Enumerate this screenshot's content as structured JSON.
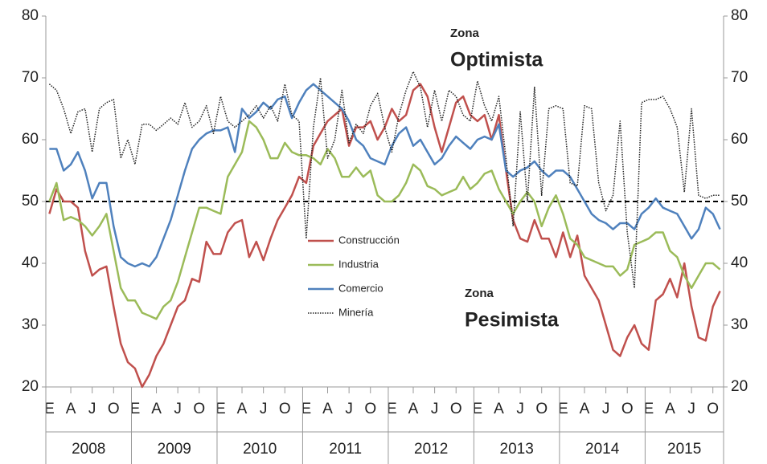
{
  "chart_data": {
    "type": "line",
    "categories": [
      "E",
      null,
      null,
      "A",
      null,
      null,
      "J",
      null,
      null,
      "O",
      null,
      null,
      "E",
      null,
      null,
      "A",
      null,
      null,
      "J",
      null,
      null,
      "O",
      null,
      null,
      "E",
      null,
      null,
      "A",
      null,
      null,
      "J",
      null,
      null,
      "O",
      null,
      null,
      "E",
      null,
      null,
      "A",
      null,
      null,
      "J",
      null,
      null,
      "O",
      null,
      null,
      "E",
      null,
      null,
      "A",
      null,
      null,
      "J",
      null,
      null,
      "O",
      null,
      null,
      "E",
      null,
      null,
      "A",
      null,
      null,
      "J",
      null,
      null,
      "O",
      null,
      null,
      "E",
      null,
      null,
      "A",
      null,
      null,
      "J",
      null,
      null,
      "O",
      null,
      null,
      "E",
      null,
      null,
      "A",
      null,
      null,
      "J",
      null,
      null,
      "O",
      null
    ],
    "years": [
      "2008",
      "2009",
      "2010",
      "2011",
      "2012",
      "2013",
      "2014",
      "2015"
    ],
    "series": [
      {
        "name": "Construcción",
        "color": "#c0504d",
        "style": "solid",
        "values": [
          48,
          52,
          50,
          50,
          49,
          42,
          38,
          39,
          39.5,
          33,
          27,
          24,
          23,
          20,
          22,
          25,
          27,
          30,
          33,
          34,
          37.5,
          37,
          43.5,
          41.5,
          41.5,
          45,
          46.5,
          47,
          41,
          43.5,
          40.5,
          44,
          47,
          49,
          51,
          54,
          53,
          59,
          61,
          63,
          64,
          65,
          59,
          62,
          62,
          63,
          60,
          62,
          65,
          63,
          64,
          68,
          69,
          67,
          62,
          58,
          62,
          66,
          67,
          64,
          63,
          64,
          60,
          64,
          55,
          47,
          44,
          43.5,
          47,
          44,
          44,
          41,
          45,
          41,
          44.5,
          38,
          36,
          34,
          30,
          26,
          25,
          28,
          30,
          27,
          26,
          34,
          35,
          37.5,
          34.5,
          40,
          33,
          28,
          27.5,
          33,
          35.5
        ]
      },
      {
        "name": "Industria",
        "color": "#9bbb59",
        "style": "solid",
        "values": [
          50,
          53,
          47,
          47.5,
          47,
          46,
          44.5,
          46,
          48,
          42,
          36,
          34,
          34,
          32,
          31.5,
          31,
          33,
          34,
          37,
          41,
          45,
          49,
          49,
          48.5,
          48,
          54,
          56,
          58,
          63,
          62,
          60,
          57,
          57,
          59.5,
          58,
          57.5,
          57.5,
          57,
          56,
          58.5,
          57,
          54,
          54,
          55.5,
          54,
          55,
          51,
          50,
          50,
          51,
          53,
          56,
          55,
          52.5,
          52,
          51,
          51.5,
          52,
          54,
          52,
          53,
          54.5,
          55,
          52,
          50,
          48,
          50,
          51.5,
          50,
          46,
          49,
          51,
          48,
          44,
          43,
          41,
          40.5,
          40,
          39.5,
          39.5,
          38,
          39,
          43,
          43.5,
          44,
          45,
          45,
          42,
          41,
          38,
          36,
          38,
          40,
          40,
          39
        ]
      },
      {
        "name": "Comercio",
        "color": "#4f81bd",
        "style": "solid",
        "values": [
          58.5,
          58.5,
          55,
          56,
          58,
          55,
          50.5,
          53,
          53,
          46,
          41,
          40,
          39.5,
          40,
          39.5,
          41,
          44,
          47,
          51,
          55,
          58.5,
          60,
          61,
          61.5,
          61.5,
          62,
          58,
          65,
          63.5,
          64.5,
          66,
          65,
          66.5,
          67,
          63.5,
          66,
          68,
          69,
          68,
          67,
          66,
          65,
          63,
          60,
          59,
          57,
          56.5,
          56,
          59,
          61,
          62,
          59,
          60,
          58,
          56,
          57,
          59,
          60.5,
          59.5,
          58.5,
          60,
          60.5,
          60,
          62.5,
          55,
          54,
          55,
          55.5,
          56.5,
          55,
          54,
          55,
          55,
          54,
          52,
          50,
          48,
          47,
          46.5,
          45.5,
          46.5,
          46.5,
          45.5,
          48,
          49,
          50.5,
          49,
          48.5,
          48,
          46,
          44,
          45.5,
          49,
          48,
          45.5
        ]
      },
      {
        "name": "Minería",
        "color": "#222222",
        "style": "dotted",
        "values": [
          69,
          68,
          65,
          61,
          64.5,
          65,
          58,
          65,
          66,
          66.5,
          57,
          60,
          56,
          62.5,
          62.5,
          61.5,
          62.5,
          63.5,
          62.5,
          66,
          62,
          63,
          65.5,
          61,
          67,
          63,
          62,
          63,
          64,
          65.5,
          63.5,
          65.5,
          63,
          69,
          64,
          63,
          44,
          62,
          70,
          57,
          60,
          68,
          59.5,
          62.5,
          61,
          65.5,
          67.5,
          62,
          58,
          64,
          68,
          71,
          68.5,
          62,
          68,
          63,
          68,
          67,
          64,
          63,
          69.5,
          65.5,
          63,
          67,
          57,
          46,
          64.5,
          50,
          68.5,
          51,
          65,
          65.5,
          65,
          53,
          52.5,
          65.5,
          65,
          53,
          48.5,
          51,
          63,
          45,
          36,
          66,
          66.5,
          66.5,
          67,
          65,
          62,
          51.5,
          65,
          51,
          50.5,
          51,
          51
        ]
      }
    ],
    "ylim": [
      20,
      80
    ],
    "yticks": [
      20,
      30,
      40,
      50,
      60,
      70,
      80
    ],
    "y2lim": [
      20,
      80
    ],
    "y2ticks": [
      20,
      30,
      40,
      50,
      60,
      70,
      80
    ],
    "reference_line": {
      "value": 50,
      "style": "dashed",
      "color": "#000000"
    },
    "annotations": [
      {
        "text": "Zona",
        "size": "small"
      },
      {
        "text": "Optimista",
        "size": "large"
      },
      {
        "text": "Zona",
        "size": "small"
      },
      {
        "text": "Pesimista",
        "size": "large"
      }
    ],
    "legend": "center"
  }
}
